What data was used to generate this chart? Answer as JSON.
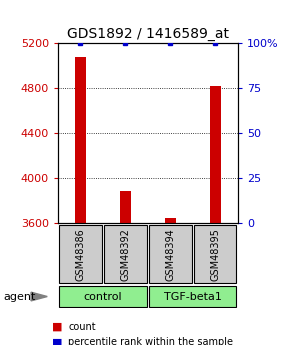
{
  "title": "GDS1892 / 1416589_at",
  "samples": [
    "GSM48386",
    "GSM48392",
    "GSM48394",
    "GSM48395"
  ],
  "groups": [
    "control",
    "control",
    "TGF-beta1",
    "TGF-beta1"
  ],
  "red_values": [
    5080,
    3880,
    3640,
    4820
  ],
  "blue_values": [
    100,
    100,
    100,
    100
  ],
  "ylim_left": [
    3600,
    5200
  ],
  "ylim_right": [
    0,
    100
  ],
  "left_ticks": [
    3600,
    4000,
    4400,
    4800,
    5200
  ],
  "right_ticks": [
    0,
    25,
    50,
    75,
    100
  ],
  "right_tick_labels": [
    "0",
    "25",
    "50",
    "75",
    "100%"
  ],
  "bar_width": 0.25,
  "left_color": "#cc0000",
  "right_color": "#0000cc",
  "title_fontsize": 10,
  "tick_fontsize": 8,
  "background_color": "#ffffff",
  "sample_box_color": "#cccccc",
  "group_box_green": "#90EE90",
  "agent_label": "agent",
  "legend_count": "count",
  "legend_pct": "percentile rank within the sample"
}
